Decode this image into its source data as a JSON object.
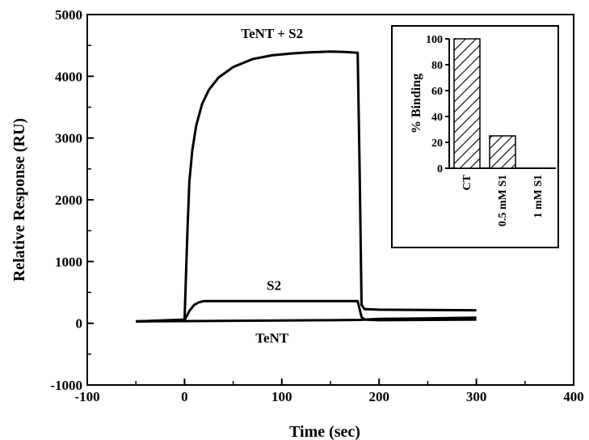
{
  "chart_data": [
    {
      "type": "line",
      "xlabel": "Time (sec)",
      "ylabel": "Relative Response (RU)",
      "xlim": [
        -100,
        400
      ],
      "ylim": [
        -1000,
        5000
      ],
      "xticks": [
        -100,
        0,
        100,
        200,
        300,
        400
      ],
      "yticks": [
        -1000,
        0,
        1000,
        2000,
        3000,
        4000,
        5000
      ],
      "grid": false,
      "series": [
        {
          "name": "TeNT + S2",
          "color": "#000000",
          "x": [
            -50,
            0,
            3,
            5,
            8,
            12,
            18,
            25,
            35,
            50,
            70,
            90,
            110,
            130,
            150,
            165,
            178,
            180,
            182,
            185,
            200,
            250,
            300
          ],
          "y": [
            30,
            60,
            1500,
            2300,
            2800,
            3200,
            3550,
            3780,
            3980,
            4150,
            4280,
            4340,
            4370,
            4390,
            4400,
            4395,
            4380,
            2500,
            300,
            230,
            220,
            215,
            210
          ]
        },
        {
          "name": "S2",
          "color": "#000000",
          "x": [
            -50,
            0,
            5,
            10,
            15,
            20,
            50,
            100,
            150,
            178,
            182,
            185,
            200,
            250,
            300
          ],
          "y": [
            30,
            50,
            200,
            300,
            340,
            360,
            360,
            360,
            360,
            360,
            100,
            60,
            50,
            55,
            60
          ]
        },
        {
          "name": "TeNT",
          "color": "#000000",
          "x": [
            -50,
            0,
            50,
            100,
            150,
            180,
            200,
            250,
            300
          ],
          "y": [
            30,
            35,
            40,
            45,
            50,
            55,
            70,
            80,
            90
          ]
        }
      ],
      "annotations": [
        "TeNT + S2",
        "S2",
        "TeNT"
      ]
    },
    {
      "type": "bar",
      "ylabel": "% Binding",
      "categories": [
        "CT",
        "0.5 mM S1",
        "1 mM S1"
      ],
      "values": [
        100,
        25,
        0
      ],
      "ylim": [
        0,
        100
      ],
      "yticks": [
        0,
        20,
        40,
        60,
        80,
        100
      ],
      "pattern": "diagonal-hatch",
      "legend": "inset top-right"
    }
  ]
}
